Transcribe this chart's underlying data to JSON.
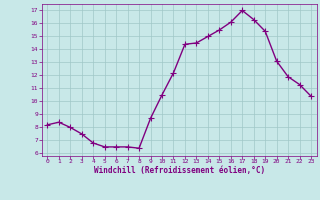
{
  "x": [
    0,
    1,
    2,
    3,
    4,
    5,
    6,
    7,
    8,
    9,
    10,
    11,
    12,
    13,
    14,
    15,
    16,
    17,
    18,
    19,
    20,
    21,
    22,
    23
  ],
  "y": [
    8.2,
    8.4,
    8.0,
    7.5,
    6.8,
    6.5,
    6.5,
    6.5,
    6.4,
    8.7,
    10.5,
    12.2,
    14.4,
    14.5,
    15.0,
    15.5,
    16.1,
    17.0,
    16.3,
    15.4,
    13.1,
    11.9,
    11.3,
    10.4
  ],
  "line_color": "#800080",
  "marker_color": "#800080",
  "bg_color": "#c8e8e8",
  "grid_color": "#a0c8c8",
  "xlabel": "Windchill (Refroidissement éolien,°C)",
  "ylim": [
    6,
    17
  ],
  "xlim": [
    0,
    23
  ],
  "yticks": [
    6,
    7,
    8,
    9,
    10,
    11,
    12,
    13,
    14,
    15,
    16,
    17
  ],
  "xticks": [
    0,
    1,
    2,
    3,
    4,
    5,
    6,
    7,
    8,
    9,
    10,
    11,
    12,
    13,
    14,
    15,
    16,
    17,
    18,
    19,
    20,
    21,
    22,
    23
  ],
  "tick_color": "#800080",
  "label_color": "#800080",
  "line_width": 1.0,
  "marker_size": 4
}
